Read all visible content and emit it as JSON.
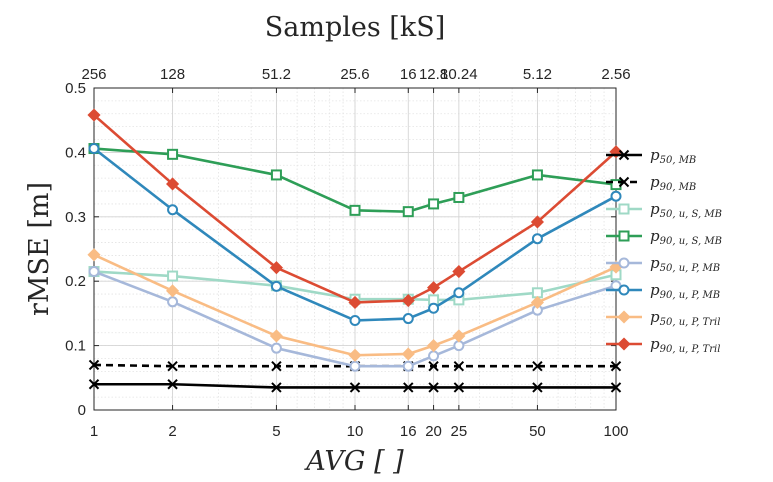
{
  "chart_data": {
    "type": "line",
    "title": "Samples [kS]",
    "xlabel": "AVG [ ]",
    "ylabel": "rMSE [m]",
    "xscale": "log",
    "xlim": [
      1,
      100
    ],
    "ylim": [
      0,
      0.5
    ],
    "x": [
      1,
      2,
      5,
      10,
      16,
      20,
      25,
      50,
      100
    ],
    "x_tick_labels": [
      "1",
      "2",
      "5",
      "10",
      "16",
      "20",
      "25",
      "50",
      "100"
    ],
    "y_ticks": [
      0,
      0.1,
      0.2,
      0.3,
      0.4,
      0.5
    ],
    "y_tick_labels": [
      "0",
      "0.1",
      "0.2",
      "0.3",
      "0.4",
      "0.5"
    ],
    "top_axis_ticks": [
      "256",
      "128",
      "51.2",
      "25.6",
      "16",
      "12.8",
      "10.24",
      "5.12",
      "2.56"
    ],
    "grid": true,
    "legend_position": "right",
    "series": [
      {
        "name": "p50,MB",
        "values": [
          0.04,
          0.04,
          0.035,
          0.035,
          0.035,
          0.035,
          0.035,
          0.035,
          0.035
        ],
        "color": "#000000",
        "dash": "solid",
        "marker": "x"
      },
      {
        "name": "p90,MB",
        "values": [
          0.07,
          0.068,
          0.068,
          0.068,
          0.068,
          0.068,
          0.068,
          0.068,
          0.068
        ],
        "color": "#000000",
        "dash": "dashed",
        "marker": "x"
      },
      {
        "name": "p50,u,S,MB",
        "values": [
          0.215,
          0.208,
          0.193,
          0.172,
          0.172,
          0.171,
          0.171,
          0.182,
          0.21
        ],
        "color": "#9fd9c6",
        "dash": "solid",
        "marker": "square"
      },
      {
        "name": "p90,u,S,MB",
        "values": [
          0.406,
          0.397,
          0.365,
          0.31,
          0.308,
          0.32,
          0.33,
          0.365,
          0.35
        ],
        "color": "#2e9e57",
        "dash": "solid",
        "marker": "square"
      },
      {
        "name": "p50,u,P,MB",
        "values": [
          0.215,
          0.168,
          0.096,
          0.068,
          0.068,
          0.084,
          0.1,
          0.155,
          0.193
        ],
        "color": "#a6b8da",
        "dash": "solid",
        "marker": "circle"
      },
      {
        "name": "p90,u,P,MB",
        "values": [
          0.406,
          0.311,
          0.192,
          0.139,
          0.142,
          0.158,
          0.182,
          0.266,
          0.332
        ],
        "color": "#2f88bb",
        "dash": "solid",
        "marker": "circle"
      },
      {
        "name": "p50,u,P,Tril",
        "values": [
          0.241,
          0.185,
          0.115,
          0.085,
          0.087,
          0.1,
          0.115,
          0.167,
          0.222
        ],
        "color": "#f9bc84",
        "dash": "solid",
        "marker": "diamond"
      },
      {
        "name": "p90,u,P,Tril",
        "values": [
          0.458,
          0.351,
          0.221,
          0.167,
          0.17,
          0.19,
          0.215,
          0.292,
          0.401
        ],
        "color": "#dc4b33",
        "dash": "solid",
        "marker": "diamond"
      }
    ]
  },
  "legend_items": [
    {
      "main": "p",
      "sub": "50, MB"
    },
    {
      "main": "p",
      "sub": "90, MB"
    },
    {
      "main": "p",
      "sub": "50, u, S, MB"
    },
    {
      "main": "p",
      "sub": "90, u, S, MB"
    },
    {
      "main": "p",
      "sub": "50, u, P, MB"
    },
    {
      "main": "p",
      "sub": "90, u, P, MB"
    },
    {
      "main": "p",
      "sub": "50, u, P, Tril"
    },
    {
      "main": "p",
      "sub": "90, u, P, Tril"
    }
  ]
}
